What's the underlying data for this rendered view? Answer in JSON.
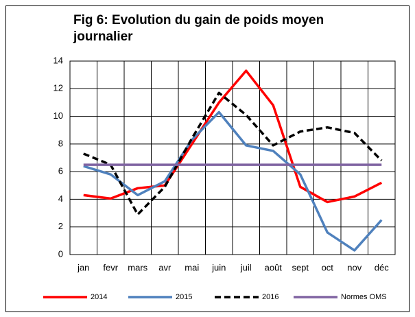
{
  "chart_data": {
    "type": "line",
    "title": "Fig 6: Evolution du gain de poids moyen journalier",
    "categories": [
      "jan",
      "fevr",
      "mars",
      "avr",
      "mai",
      "juin",
      "juil",
      "août",
      "sept",
      "oct",
      "nov",
      "déc"
    ],
    "series": [
      {
        "name": "2014",
        "color": "#ff0000",
        "dash": false,
        "values": [
          4.3,
          4.05,
          4.8,
          5.0,
          8.0,
          11.0,
          13.3,
          10.8,
          4.9,
          3.8,
          4.2,
          5.2
        ]
      },
      {
        "name": "2015",
        "color": "#4f81bd",
        "dash": false,
        "values": [
          6.4,
          5.8,
          4.3,
          5.3,
          8.3,
          10.3,
          7.9,
          7.5,
          5.8,
          1.6,
          0.3,
          2.5
        ]
      },
      {
        "name": "2016",
        "color": "#000000",
        "dash": true,
        "values": [
          7.3,
          6.5,
          2.9,
          4.9,
          8.4,
          11.7,
          10.1,
          7.9,
          8.9,
          9.2,
          8.8,
          6.8
        ]
      },
      {
        "name": "Normes OMS",
        "color": "#8064a2",
        "dash": false,
        "values": [
          6.5,
          6.5,
          6.5,
          6.5,
          6.5,
          6.5,
          6.5,
          6.5,
          6.5,
          6.5,
          6.5,
          6.5
        ]
      }
    ],
    "ylim": [
      0,
      14
    ],
    "yticks": [
      0,
      2,
      4,
      6,
      8,
      10,
      12,
      14
    ],
    "grid": true,
    "legend": "bottom"
  }
}
